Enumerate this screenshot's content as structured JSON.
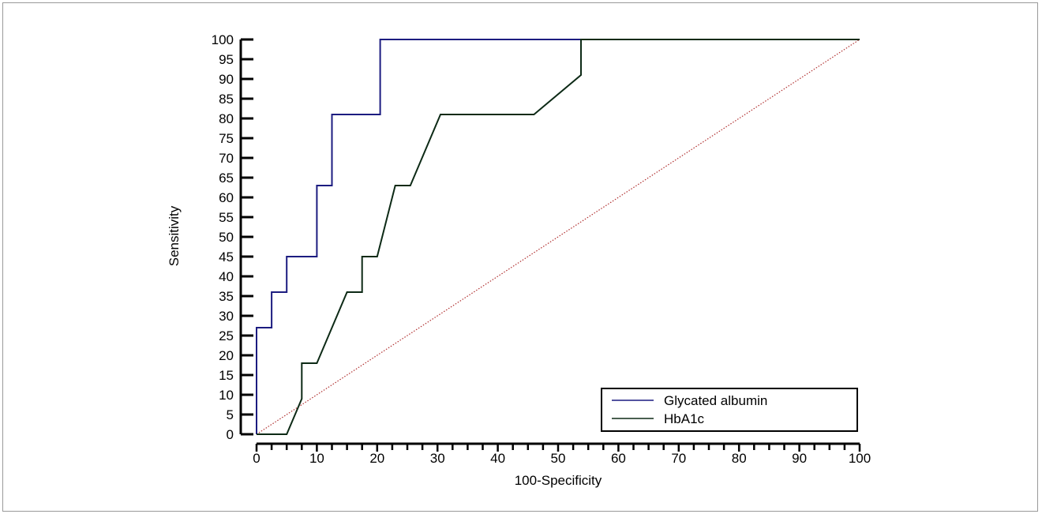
{
  "chart_data": {
    "type": "line",
    "title": "",
    "xlabel": "100-Specificity",
    "ylabel": "Sensitivity",
    "xlim": [
      0,
      100
    ],
    "ylim": [
      0,
      100
    ],
    "x_ticks": [
      0,
      10,
      20,
      30,
      40,
      50,
      60,
      70,
      80,
      90,
      100
    ],
    "y_ticks": [
      0,
      5,
      10,
      15,
      20,
      25,
      30,
      35,
      40,
      45,
      50,
      55,
      60,
      65,
      70,
      75,
      80,
      85,
      90,
      95,
      100
    ],
    "legend_position": "bottom-right",
    "grid": false,
    "series": [
      {
        "name": "Glycated albumin",
        "color": "#1c1c80",
        "x": [
          0,
          0,
          2.5,
          2.5,
          5,
          5,
          10,
          10,
          12.5,
          12.5,
          20.5,
          20.5,
          100
        ],
        "y": [
          0,
          27,
          27,
          36,
          36,
          45,
          45,
          63,
          63,
          81,
          81,
          100,
          100
        ]
      },
      {
        "name": "HbA1c",
        "color": "#0d2a16",
        "x": [
          0,
          5,
          7.5,
          7.5,
          10,
          15,
          17.5,
          17.5,
          20,
          23,
          25.5,
          30.5,
          46,
          53.8,
          53.8,
          100
        ],
        "y": [
          0,
          0,
          9,
          18,
          18,
          36,
          36,
          45,
          45,
          63,
          63,
          81,
          81,
          91,
          100,
          100
        ]
      }
    ],
    "reference_line": {
      "color": "#b03030",
      "x": [
        0,
        100
      ],
      "y": [
        0,
        100
      ]
    }
  }
}
